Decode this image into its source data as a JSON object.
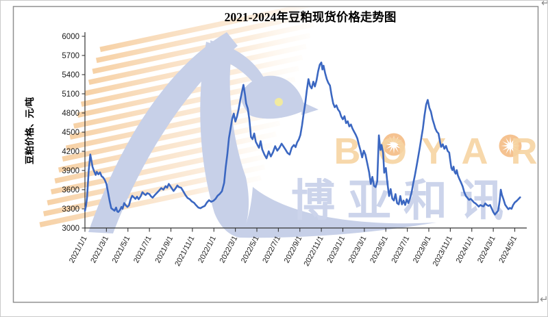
{
  "page": {
    "return_mark": "↵"
  },
  "chart_data": {
    "type": "line",
    "title": "2021-2024年豆粕现货价格走势图",
    "ylabel": "豆粕价格、元/吨",
    "ylim": [
      3000,
      6000
    ],
    "ytick_step": 300,
    "grid": false,
    "legend": "none",
    "line_color": "#3b67c1",
    "yticks": [
      "6000",
      "5700",
      "5400",
      "5100",
      "4800",
      "4500",
      "4200",
      "3900",
      "3600",
      "3300",
      "3000"
    ],
    "xticks": [
      "2021/1/1",
      "2021/3/1",
      "2021/5/1",
      "2021/7/1",
      "2021/9/1",
      "2021/11/1",
      "2022/1/1",
      "2022/3/1",
      "2022/5/1",
      "2022/7/1",
      "2022/9/1",
      "2022/11/1",
      "2023/1/1",
      "2023/3/1",
      "2023/5/1",
      "2023/7/1",
      "2023/9/1",
      "2023/11/1",
      "2024/1/1",
      "2024/3/1",
      "2024/5/1"
    ],
    "x_unit": "months_since_2021_01_01",
    "series": [
      {
        "points": [
          [
            0.0,
            3270
          ],
          [
            0.1,
            3350
          ],
          [
            0.2,
            3480
          ],
          [
            0.35,
            3900
          ],
          [
            0.5,
            4150
          ],
          [
            0.6,
            4060
          ],
          [
            0.7,
            3960
          ],
          [
            0.85,
            3890
          ],
          [
            1.0,
            3830
          ],
          [
            1.1,
            3880
          ],
          [
            1.25,
            3840
          ],
          [
            1.4,
            3870
          ],
          [
            1.55,
            3810
          ],
          [
            1.7,
            3790
          ],
          [
            1.85,
            3750
          ],
          [
            2.0,
            3690
          ],
          [
            2.15,
            3560
          ],
          [
            2.3,
            3420
          ],
          [
            2.45,
            3310
          ],
          [
            2.6,
            3290
          ],
          [
            2.75,
            3270
          ],
          [
            2.9,
            3320
          ],
          [
            3.0,
            3260
          ],
          [
            3.1,
            3250
          ],
          [
            3.25,
            3280
          ],
          [
            3.4,
            3330
          ],
          [
            3.5,
            3300
          ],
          [
            3.65,
            3390
          ],
          [
            3.8,
            3355
          ],
          [
            3.95,
            3330
          ],
          [
            4.1,
            3355
          ],
          [
            4.25,
            3450
          ],
          [
            4.4,
            3505
          ],
          [
            4.55,
            3480
          ],
          [
            4.7,
            3455
          ],
          [
            4.85,
            3490
          ],
          [
            5.0,
            3450
          ],
          [
            5.2,
            3500
          ],
          [
            5.35,
            3560
          ],
          [
            5.5,
            3535
          ],
          [
            5.65,
            3515
          ],
          [
            5.8,
            3545
          ],
          [
            6.0,
            3530
          ],
          [
            6.15,
            3495
          ],
          [
            6.3,
            3475
          ],
          [
            6.5,
            3515
          ],
          [
            6.7,
            3550
          ],
          [
            6.9,
            3585
          ],
          [
            7.1,
            3625
          ],
          [
            7.3,
            3600
          ],
          [
            7.5,
            3655
          ],
          [
            7.65,
            3630
          ],
          [
            7.8,
            3690
          ],
          [
            7.95,
            3655
          ],
          [
            8.1,
            3615
          ],
          [
            8.25,
            3580
          ],
          [
            8.45,
            3625
          ],
          [
            8.6,
            3665
          ],
          [
            8.75,
            3640
          ],
          [
            8.95,
            3630
          ],
          [
            9.15,
            3575
          ],
          [
            9.35,
            3515
          ],
          [
            9.55,
            3470
          ],
          [
            9.75,
            3450
          ],
          [
            9.95,
            3415
          ],
          [
            10.15,
            3395
          ],
          [
            10.35,
            3355
          ],
          [
            10.55,
            3320
          ],
          [
            10.75,
            3310
          ],
          [
            10.95,
            3330
          ],
          [
            11.15,
            3345
          ],
          [
            11.35,
            3400
          ],
          [
            11.55,
            3435
          ],
          [
            11.75,
            3410
          ],
          [
            11.95,
            3425
          ],
          [
            12.15,
            3455
          ],
          [
            12.35,
            3505
          ],
          [
            12.55,
            3535
          ],
          [
            12.75,
            3575
          ],
          [
            12.95,
            3705
          ],
          [
            13.1,
            3950
          ],
          [
            13.25,
            4155
          ],
          [
            13.4,
            4405
          ],
          [
            13.55,
            4555
          ],
          [
            13.7,
            4705
          ],
          [
            13.85,
            4790
          ],
          [
            14.0,
            4665
          ],
          [
            14.15,
            4745
          ],
          [
            14.3,
            4855
          ],
          [
            14.45,
            5000
          ],
          [
            14.6,
            5120
          ],
          [
            14.75,
            5240
          ],
          [
            14.9,
            5085
          ],
          [
            15.0,
            4950
          ],
          [
            15.15,
            4870
          ],
          [
            15.3,
            4700
          ],
          [
            15.45,
            4425
          ],
          [
            15.6,
            4390
          ],
          [
            15.75,
            4480
          ],
          [
            15.9,
            4350
          ],
          [
            16.05,
            4300
          ],
          [
            16.2,
            4255
          ],
          [
            16.35,
            4360
          ],
          [
            16.5,
            4230
          ],
          [
            16.7,
            4150
          ],
          [
            16.9,
            4090
          ],
          [
            17.1,
            4200
          ],
          [
            17.3,
            4120
          ],
          [
            17.5,
            4185
          ],
          [
            17.7,
            4280
          ],
          [
            17.9,
            4210
          ],
          [
            18.1,
            4255
          ],
          [
            18.3,
            4320
          ],
          [
            18.5,
            4270
          ],
          [
            18.65,
            4230
          ],
          [
            18.85,
            4175
          ],
          [
            19.05,
            4150
          ],
          [
            19.25,
            4260
          ],
          [
            19.45,
            4300
          ],
          [
            19.6,
            4265
          ],
          [
            19.75,
            4340
          ],
          [
            19.9,
            4385
          ],
          [
            20.05,
            4455
          ],
          [
            20.2,
            4605
          ],
          [
            20.35,
            4785
          ],
          [
            20.5,
            4950
          ],
          [
            20.65,
            5155
          ],
          [
            20.8,
            5330
          ],
          [
            20.95,
            5220
          ],
          [
            21.1,
            5185
          ],
          [
            21.25,
            5290
          ],
          [
            21.4,
            5215
          ],
          [
            21.55,
            5310
          ],
          [
            21.7,
            5450
          ],
          [
            21.85,
            5555
          ],
          [
            22.0,
            5590
          ],
          [
            22.1,
            5480
          ],
          [
            22.2,
            5540
          ],
          [
            22.35,
            5425
          ],
          [
            22.5,
            5330
          ],
          [
            22.65,
            5270
          ],
          [
            22.8,
            5230
          ],
          [
            22.95,
            5080
          ],
          [
            23.1,
            4950
          ],
          [
            23.25,
            4890
          ],
          [
            23.4,
            4920
          ],
          [
            23.55,
            4855
          ],
          [
            23.7,
            4820
          ],
          [
            23.85,
            4745
          ],
          [
            24.0,
            4700
          ],
          [
            24.15,
            4750
          ],
          [
            24.3,
            4640
          ],
          [
            24.45,
            4670
          ],
          [
            24.6,
            4590
          ],
          [
            24.75,
            4620
          ],
          [
            24.9,
            4555
          ],
          [
            25.05,
            4505
          ],
          [
            25.2,
            4460
          ],
          [
            25.35,
            4400
          ],
          [
            25.5,
            4300
          ],
          [
            25.65,
            4210
          ],
          [
            25.8,
            4105
          ],
          [
            25.95,
            4210
          ],
          [
            26.1,
            4150
          ],
          [
            26.3,
            3990
          ],
          [
            26.45,
            3870
          ],
          [
            26.6,
            3690
          ],
          [
            26.75,
            3800
          ],
          [
            26.9,
            3660
          ],
          [
            27.05,
            3640
          ],
          [
            27.2,
            3730
          ],
          [
            27.35,
            4450
          ],
          [
            27.5,
            4220
          ],
          [
            27.6,
            4300
          ],
          [
            27.75,
            4175
          ],
          [
            27.85,
            3865
          ],
          [
            28.0,
            3940
          ],
          [
            28.15,
            3700
          ],
          [
            28.3,
            3500
          ],
          [
            28.45,
            3610
          ],
          [
            28.6,
            3460
          ],
          [
            28.75,
            3430
          ],
          [
            28.9,
            3530
          ],
          [
            29.05,
            3390
          ],
          [
            29.2,
            3370
          ],
          [
            29.35,
            3500
          ],
          [
            29.5,
            3370
          ],
          [
            29.65,
            3430
          ],
          [
            29.8,
            3360
          ],
          [
            29.95,
            3450
          ],
          [
            30.1,
            3390
          ],
          [
            30.25,
            3460
          ],
          [
            30.4,
            3560
          ],
          [
            30.55,
            3700
          ],
          [
            30.7,
            3820
          ],
          [
            30.85,
            3960
          ],
          [
            31.0,
            4100
          ],
          [
            31.15,
            4250
          ],
          [
            31.3,
            4405
          ],
          [
            31.45,
            4560
          ],
          [
            31.6,
            4760
          ],
          [
            31.75,
            4930
          ],
          [
            31.9,
            5005
          ],
          [
            32.05,
            4880
          ],
          [
            32.2,
            4820
          ],
          [
            32.35,
            4700
          ],
          [
            32.5,
            4620
          ],
          [
            32.6,
            4560
          ],
          [
            32.75,
            4505
          ],
          [
            32.9,
            4480
          ],
          [
            33.05,
            4340
          ],
          [
            33.15,
            4270
          ],
          [
            33.3,
            4310
          ],
          [
            33.45,
            4240
          ],
          [
            33.6,
            4285
          ],
          [
            33.75,
            4205
          ],
          [
            33.9,
            4180
          ],
          [
            34.0,
            4050
          ],
          [
            34.1,
            3940
          ],
          [
            34.2,
            3905
          ],
          [
            34.3,
            3960
          ],
          [
            34.4,
            3880
          ],
          [
            34.5,
            3850
          ],
          [
            34.6,
            3905
          ],
          [
            34.7,
            3825
          ],
          [
            34.85,
            3765
          ],
          [
            35.0,
            3710
          ],
          [
            35.15,
            3650
          ],
          [
            35.3,
            3560
          ],
          [
            35.45,
            3500
          ],
          [
            35.6,
            3470
          ],
          [
            35.75,
            3440
          ],
          [
            35.9,
            3455
          ],
          [
            36.05,
            3430
          ],
          [
            36.2,
            3400
          ],
          [
            36.35,
            3385
          ],
          [
            36.5,
            3360
          ],
          [
            36.65,
            3335
          ],
          [
            36.8,
            3360
          ],
          [
            36.95,
            3345
          ],
          [
            37.1,
            3340
          ],
          [
            37.25,
            3385
          ],
          [
            37.4,
            3360
          ],
          [
            37.55,
            3345
          ],
          [
            37.7,
            3360
          ],
          [
            37.85,
            3305
          ],
          [
            38.0,
            3250
          ],
          [
            38.15,
            3210
          ],
          [
            38.3,
            3240
          ],
          [
            38.45,
            3270
          ],
          [
            38.6,
            3430
          ],
          [
            38.7,
            3600
          ],
          [
            38.8,
            3520
          ],
          [
            38.95,
            3450
          ],
          [
            39.1,
            3365
          ],
          [
            39.25,
            3330
          ],
          [
            39.4,
            3295
          ],
          [
            39.55,
            3315
          ],
          [
            39.7,
            3300
          ],
          [
            39.85,
            3360
          ],
          [
            40.0,
            3400
          ],
          [
            40.15,
            3420
          ],
          [
            40.3,
            3445
          ],
          [
            40.5,
            3480
          ]
        ]
      }
    ]
  },
  "watermark": {
    "brand_en": "BOYAR",
    "brand_cn": "博亚和讯",
    "orange_letters": "#f7d4a2",
    "orange_sun": "#f4bf8a",
    "blue": "#c7d0e8",
    "cn_blue": "#ccd4eb",
    "eye_yellow": "#f1ea9f"
  }
}
